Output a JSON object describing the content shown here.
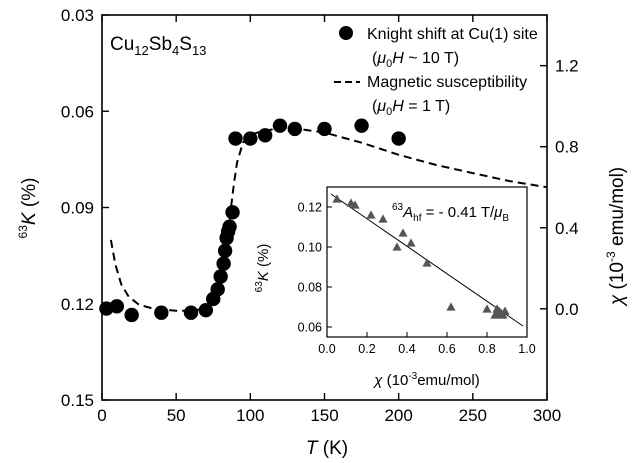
{
  "chart_data": {
    "type": "scatter",
    "compound_label": {
      "text": "Cu",
      "parts": [
        {
          "t": "Cu",
          "sub": false
        },
        {
          "t": "12",
          "sub": true
        },
        {
          "t": "Sb",
          "sub": false
        },
        {
          "t": "4",
          "sub": true
        },
        {
          "t": "S",
          "sub": false
        },
        {
          "t": "13",
          "sub": true
        }
      ]
    },
    "x_axis": {
      "label_italic": "T",
      "label_rest": " (K)",
      "range": [
        0,
        300
      ],
      "ticks": [
        0,
        50,
        100,
        150,
        200,
        250,
        300
      ]
    },
    "y_left": {
      "label_sup": "63",
      "label_italic": "K",
      "label_rest": " (%)",
      "range": [
        0.03,
        0.15
      ],
      "inverted": true,
      "ticks": [
        0.03,
        0.06,
        0.09,
        0.12,
        0.15
      ],
      "tick_labels": [
        "0.03",
        "0.06",
        "0.09",
        "0.12",
        "0.15"
      ]
    },
    "y_right": {
      "label_italic": "χ",
      "label_rest": " (10",
      "label_sup": "-3",
      "label_tail": " emu/mol)",
      "range": [
        -0.45,
        1.45
      ],
      "ticks": [
        0.0,
        0.4,
        0.8,
        1.2
      ],
      "tick_labels": [
        "0.0",
        "0.4",
        "0.8",
        "1.2"
      ]
    },
    "series": [
      {
        "name": "Knight shift  at Cu(1) site",
        "condition": "(μ0H ~ 10 T)",
        "axis": "left",
        "style": "filled-circle",
        "x": [
          3,
          10,
          20,
          40,
          60,
          70,
          75,
          78,
          80,
          82,
          83,
          84,
          85,
          86,
          88,
          90,
          100,
          110,
          120,
          130,
          150,
          175,
          200
        ],
        "y": [
          0.1215,
          0.1208,
          0.1235,
          0.1228,
          0.1228,
          0.122,
          0.1185,
          0.1155,
          0.1115,
          0.1075,
          0.1035,
          0.0995,
          0.0975,
          0.096,
          0.0915,
          0.0685,
          0.0685,
          0.0675,
          0.0645,
          0.0655,
          0.0655,
          0.0645,
          0.0685
        ]
      },
      {
        "name": "Magnetic susceptibility",
        "condition": "(μ0H = 1 T)",
        "axis": "right",
        "style": "dashed-line",
        "x": [
          6,
          9,
          13,
          18,
          25,
          35,
          50,
          60,
          68,
          72,
          76,
          79,
          82,
          85,
          87,
          89,
          91,
          95,
          100,
          110,
          120,
          130,
          140,
          150,
          160,
          175,
          200,
          225,
          250,
          275,
          300
        ],
        "y": [
          0.34,
          0.22,
          0.12,
          0.06,
          0.02,
          0.0,
          -0.01,
          -0.01,
          0.0,
          0.02,
          0.06,
          0.12,
          0.22,
          0.36,
          0.5,
          0.62,
          0.72,
          0.82,
          0.86,
          0.88,
          0.89,
          0.89,
          0.88,
          0.87,
          0.85,
          0.82,
          0.76,
          0.71,
          0.67,
          0.63,
          0.6
        ]
      }
    ],
    "inset": {
      "x_axis": {
        "label_italic": "χ",
        "label_rest": " (10",
        "label_sup": "-3",
        "label_tail": "emu/mol)",
        "range": [
          0,
          1.0
        ],
        "ticks": [
          0.0,
          0.2,
          0.4,
          0.6,
          0.8,
          1.0
        ],
        "tick_labels": [
          "0.0",
          "0.2",
          "0.4",
          "0.6",
          "0.8",
          "1.0"
        ]
      },
      "y_axis": {
        "label_sup": "63",
        "label_italic": "K",
        "label_rest": " (%)",
        "range": [
          0.055,
          0.13
        ],
        "ticks": [
          0.06,
          0.08,
          0.1,
          0.12
        ],
        "tick_labels": [
          "0.06",
          "0.08",
          "0.10",
          "0.12"
        ]
      },
      "annotation": {
        "sup": "63",
        "italic_a": "A",
        "sub": "hf",
        "rest": " = - 0.41 T/",
        "italic_mu": "μ",
        "sub2": "B"
      },
      "points": {
        "style": "filled-triangle",
        "x": [
          0.05,
          0.12,
          0.14,
          0.22,
          0.28,
          0.35,
          0.38,
          0.42,
          0.5,
          0.62,
          0.8,
          0.84,
          0.85,
          0.86,
          0.87,
          0.87,
          0.88,
          0.89
        ],
        "y": [
          0.124,
          0.122,
          0.121,
          0.116,
          0.114,
          0.1,
          0.107,
          0.102,
          0.092,
          0.07,
          0.069,
          0.066,
          0.069,
          0.068,
          0.066,
          0.067,
          0.066,
          0.068
        ]
      },
      "fit": {
        "x": [
          0.02,
          0.98
        ],
        "y": [
          0.1265,
          0.0605
        ]
      }
    }
  },
  "colors": {
    "marker": "#000000",
    "inset_marker": "#555555"
  }
}
